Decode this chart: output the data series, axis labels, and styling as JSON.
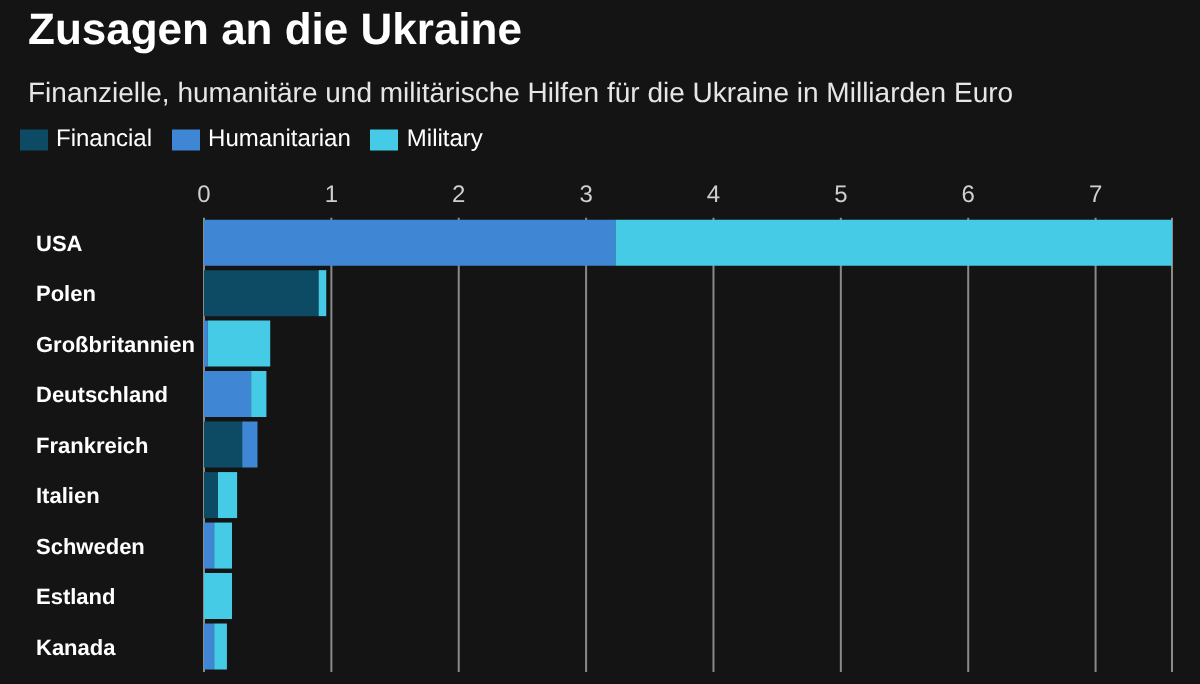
{
  "chart_data": {
    "type": "bar",
    "orientation": "horizontal",
    "stacked": true,
    "title": "Zusagen an die Ukraine",
    "subtitle": "Finanzielle, humanitäre und militärische Hilfen für die Ukraine in Milliarden Euro",
    "categories": [
      "USA",
      "Polen",
      "Großbritannien",
      "Deutschland",
      "Frankreich",
      "Italien",
      "Schweden",
      "Estland",
      "Kanada"
    ],
    "series": [
      {
        "name": "Financial",
        "color": "#0d4a63",
        "values": [
          0,
          0.9,
          0,
          0,
          0.3,
          0.11,
          0,
          0,
          0
        ]
      },
      {
        "name": "Humanitarian",
        "color": "#3f87d4",
        "values": [
          3.23,
          0,
          0.03,
          0.37,
          0.12,
          0,
          0.08,
          0,
          0.08
        ]
      },
      {
        "name": "Military",
        "color": "#45cbe6",
        "values": [
          4.37,
          0.06,
          0.49,
          0.12,
          0,
          0.15,
          0.14,
          0.22,
          0.1
        ]
      }
    ],
    "xlim": [
      0,
      7.6
    ],
    "xticks": [
      0,
      1,
      2,
      3,
      4,
      5,
      6,
      7
    ],
    "grid": "x",
    "legend": "top left"
  }
}
